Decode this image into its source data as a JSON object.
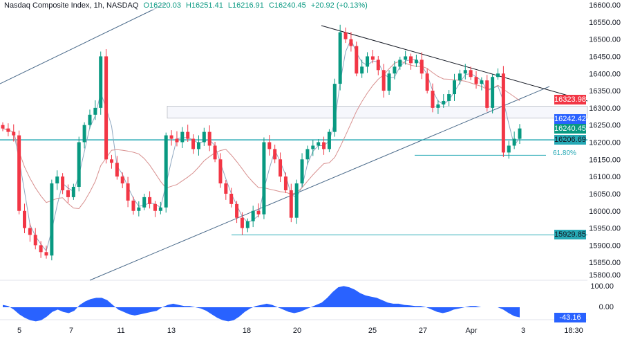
{
  "header": {
    "symbol": "Nasdaq Composite Index, 1h, NASDAQ",
    "open": "O16220.03",
    "high": "H16251.41",
    "low": "L16216.91",
    "close": "C16240.45",
    "change": "+20.92 (+0.13%)"
  },
  "tags": {
    "trend": "16323.98",
    "prev": "16242.42",
    "last": "16240.45",
    "level": "16206.69",
    "support": "15929.85",
    "osc": "-43.16"
  },
  "fib_label": "61.80%",
  "colors": {
    "up": "#089981",
    "down": "#f23645",
    "fast_ma": "#8fa7c0",
    "slow_ma": "#d8908f",
    "level": "#26a9b5",
    "osc": "#2962ff",
    "trend_tag": "#f23645",
    "prev_tag": "#2962ff",
    "last_tag": "#089981"
  },
  "chart_data": {
    "type": "candlestick",
    "ylim": [
      15800,
      16600
    ],
    "y_ticks": [
      "16600.00",
      "16550.00",
      "16500.00",
      "16450.00",
      "16400.00",
      "16350.00",
      "16300.00",
      "16250.00",
      "16200.00",
      "16150.00",
      "16100.00",
      "16050.00",
      "16000.00",
      "15950.00",
      "15900.00",
      "15850.00",
      "15800.00"
    ],
    "x_ticks": [
      "5",
      "7",
      "11",
      "13",
      "18",
      "20",
      "25",
      "27",
      "Apr",
      "3",
      "18:30"
    ],
    "closes": [
      16240,
      16230,
      16220,
      16000,
      15950,
      15930,
      15900,
      15880,
      15870,
      16080,
      16100,
      16060,
      16040,
      16070,
      16200,
      16250,
      16280,
      16300,
      16450,
      16150,
      16140,
      16100,
      16080,
      16030,
      16000,
      16010,
      16040,
      16020,
      16000,
      16010,
      16220,
      16210,
      16200,
      16230,
      16210,
      16180,
      16200,
      16230,
      16190,
      16150,
      16080,
      16050,
      16020,
      15980,
      15950,
      15970,
      16000,
      15990,
      16200,
      16180,
      16150,
      16100,
      16060,
      15980,
      16080,
      16150,
      16180,
      16190,
      16200,
      16180,
      16230,
      16370,
      16520,
      16500,
      16480,
      16400,
      16420,
      16450,
      16440,
      16410,
      16350,
      16400,
      16420,
      16440,
      16450,
      16430,
      16440,
      16400,
      16350,
      16300,
      16310,
      16320,
      16340,
      16380,
      16400,
      16410,
      16390,
      16370,
      16380,
      16300,
      16390,
      16400,
      16170,
      16190,
      16210,
      16240
    ],
    "osc": {
      "ylim": [
        -100,
        100
      ],
      "ticks": [
        "100.00",
        "0.00"
      ],
      "values": [
        10,
        5,
        -10,
        -30,
        -45,
        -55,
        -60,
        -55,
        -40,
        -20,
        -10,
        -20,
        -25,
        -15,
        10,
        25,
        35,
        40,
        40,
        30,
        10,
        -10,
        -20,
        -30,
        -35,
        -30,
        -25,
        -20,
        -15,
        0,
        10,
        15,
        10,
        5,
        5,
        0,
        -5,
        -15,
        -30,
        -45,
        -55,
        -60,
        -55,
        -40,
        -20,
        -5,
        5,
        10,
        15,
        10,
        0,
        -10,
        -20,
        -25,
        -20,
        -10,
        0,
        10,
        20,
        40,
        65,
        85,
        90,
        85,
        75,
        60,
        50,
        45,
        40,
        30,
        20,
        15,
        15,
        10,
        8,
        5,
        5,
        0,
        -10,
        -20,
        -25,
        -20,
        -10,
        -5,
        0,
        5,
        5,
        0,
        0,
        0,
        0,
        -10,
        -25,
        -38,
        -43
      ]
    }
  }
}
